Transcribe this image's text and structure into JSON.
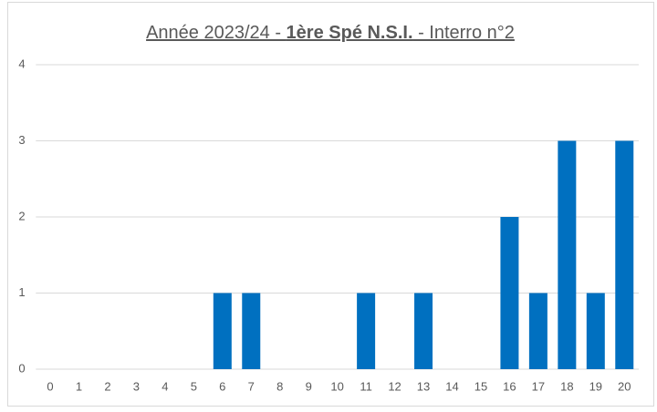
{
  "chart_data": {
    "type": "bar",
    "title": [
      "Année 2023/24 - ",
      "1ère Spé N.S.I.",
      " - Interro n°2"
    ],
    "title_bold": [
      false,
      true,
      false
    ],
    "categories": [
      0,
      1,
      2,
      3,
      4,
      5,
      6,
      7,
      8,
      9,
      10,
      11,
      12,
      13,
      14,
      15,
      16,
      17,
      18,
      19,
      20
    ],
    "values": [
      0,
      0,
      0,
      0,
      0,
      0,
      1,
      1,
      0,
      0,
      0,
      1,
      0,
      1,
      0,
      0,
      2,
      1,
      3,
      1,
      3
    ],
    "color": "#0070c0",
    "ylim": [
      0,
      4
    ],
    "yticks": [
      0,
      1,
      2,
      3,
      4
    ],
    "grid": true
  }
}
